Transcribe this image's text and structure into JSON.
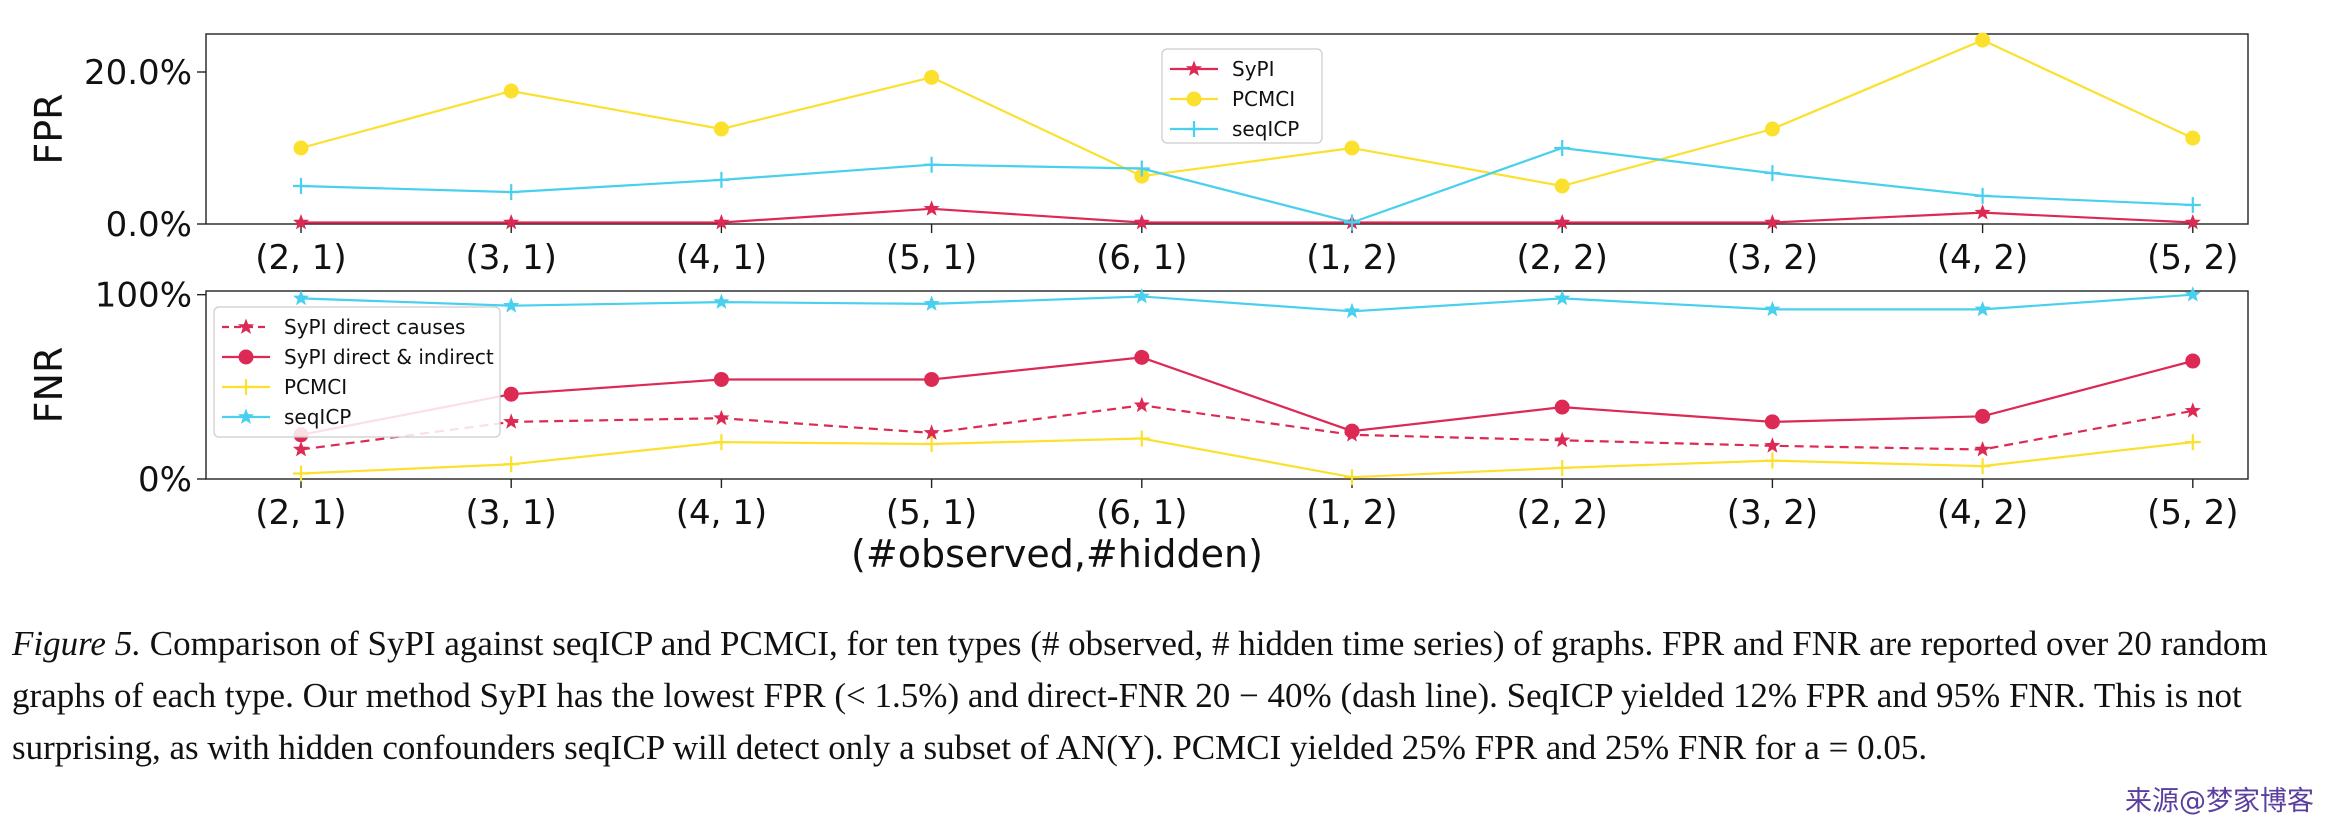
{
  "chart_data": [
    {
      "type": "line",
      "ylabel": "FPR",
      "categories": [
        "(2, 1)",
        "(3, 1)",
        "(4, 1)",
        "(5, 1)",
        "(6, 1)",
        "(1, 2)",
        "(2, 2)",
        "(3, 2)",
        "(4, 2)",
        "(5, 2)"
      ],
      "ylim": [
        0,
        25
      ],
      "ytick_values": [
        0,
        20
      ],
      "ytick_labels": [
        "0.0%",
        "20.0%"
      ],
      "legend": "top-center",
      "series": [
        {
          "name": "SyPI",
          "color": "#dc2a55",
          "marker": "star",
          "dash": false,
          "values": [
            0.2,
            0.2,
            0.2,
            2.0,
            0.2,
            0.2,
            0.2,
            0.2,
            1.5,
            0.2
          ]
        },
        {
          "name": "PCMCI",
          "color": "#fbe02e",
          "marker": "circle",
          "dash": false,
          "values": [
            10.0,
            17.5,
            12.5,
            19.3,
            6.3,
            10.0,
            5.0,
            12.5,
            24.2,
            11.3
          ]
        },
        {
          "name": "seqICP",
          "color": "#48d0ee",
          "marker": "plus",
          "dash": false,
          "values": [
            5.0,
            4.2,
            5.8,
            7.8,
            7.3,
            0.2,
            10.0,
            6.7,
            3.7,
            2.5
          ]
        }
      ]
    },
    {
      "type": "line",
      "ylabel": "FNR",
      "categories": [
        "(2, 1)",
        "(3, 1)",
        "(4, 1)",
        "(5, 1)",
        "(6, 1)",
        "(1, 2)",
        "(2, 2)",
        "(3, 2)",
        "(4, 2)",
        "(5, 2)"
      ],
      "xlabel": "(#observed,#hidden)",
      "ylim": [
        0,
        102
      ],
      "ytick_values": [
        0,
        100
      ],
      "ytick_labels": [
        "0%",
        "100%"
      ],
      "legend": "left",
      "series": [
        {
          "name": "SyPI direct causes",
          "color": "#dc2a55",
          "marker": "star",
          "dash": true,
          "values": [
            16,
            31,
            33,
            25,
            40,
            24,
            21,
            18,
            16,
            37
          ]
        },
        {
          "name": "SyPI direct & indirect",
          "color": "#dc2a55",
          "marker": "circle",
          "dash": false,
          "values": [
            24,
            46,
            54,
            54,
            66,
            26,
            39,
            31,
            34,
            64
          ]
        },
        {
          "name": "PCMCI",
          "color": "#fbe02e",
          "marker": "plus",
          "dash": false,
          "values": [
            3,
            8,
            20,
            19,
            22,
            1,
            6,
            10,
            7,
            20
          ]
        },
        {
          "name": "seqICP",
          "color": "#48d0ee",
          "marker": "star",
          "dash": false,
          "values": [
            98,
            94,
            96,
            95,
            99,
            91,
            98,
            92,
            92,
            100
          ]
        }
      ]
    }
  ],
  "caption": {
    "label": "Figure 5.",
    "text": " Comparison of SyPI against seqICP and PCMCI, for ten types (# observed, # hidden time series) of graphs. FPR and FNR are reported over 20 random graphs of each type. Our method SyPI has the lowest FPR (< 1.5%) and direct-FNR 20 − 40% (dash line). SeqICP yielded 12% FPR and 95% FNR. This is not surprising, as with hidden confounders seqICP will detect only a subset of AN(Y). PCMCI yielded 25% FPR and 25% FNR for a = 0.05."
  },
  "watermark": "来源@梦家博客"
}
